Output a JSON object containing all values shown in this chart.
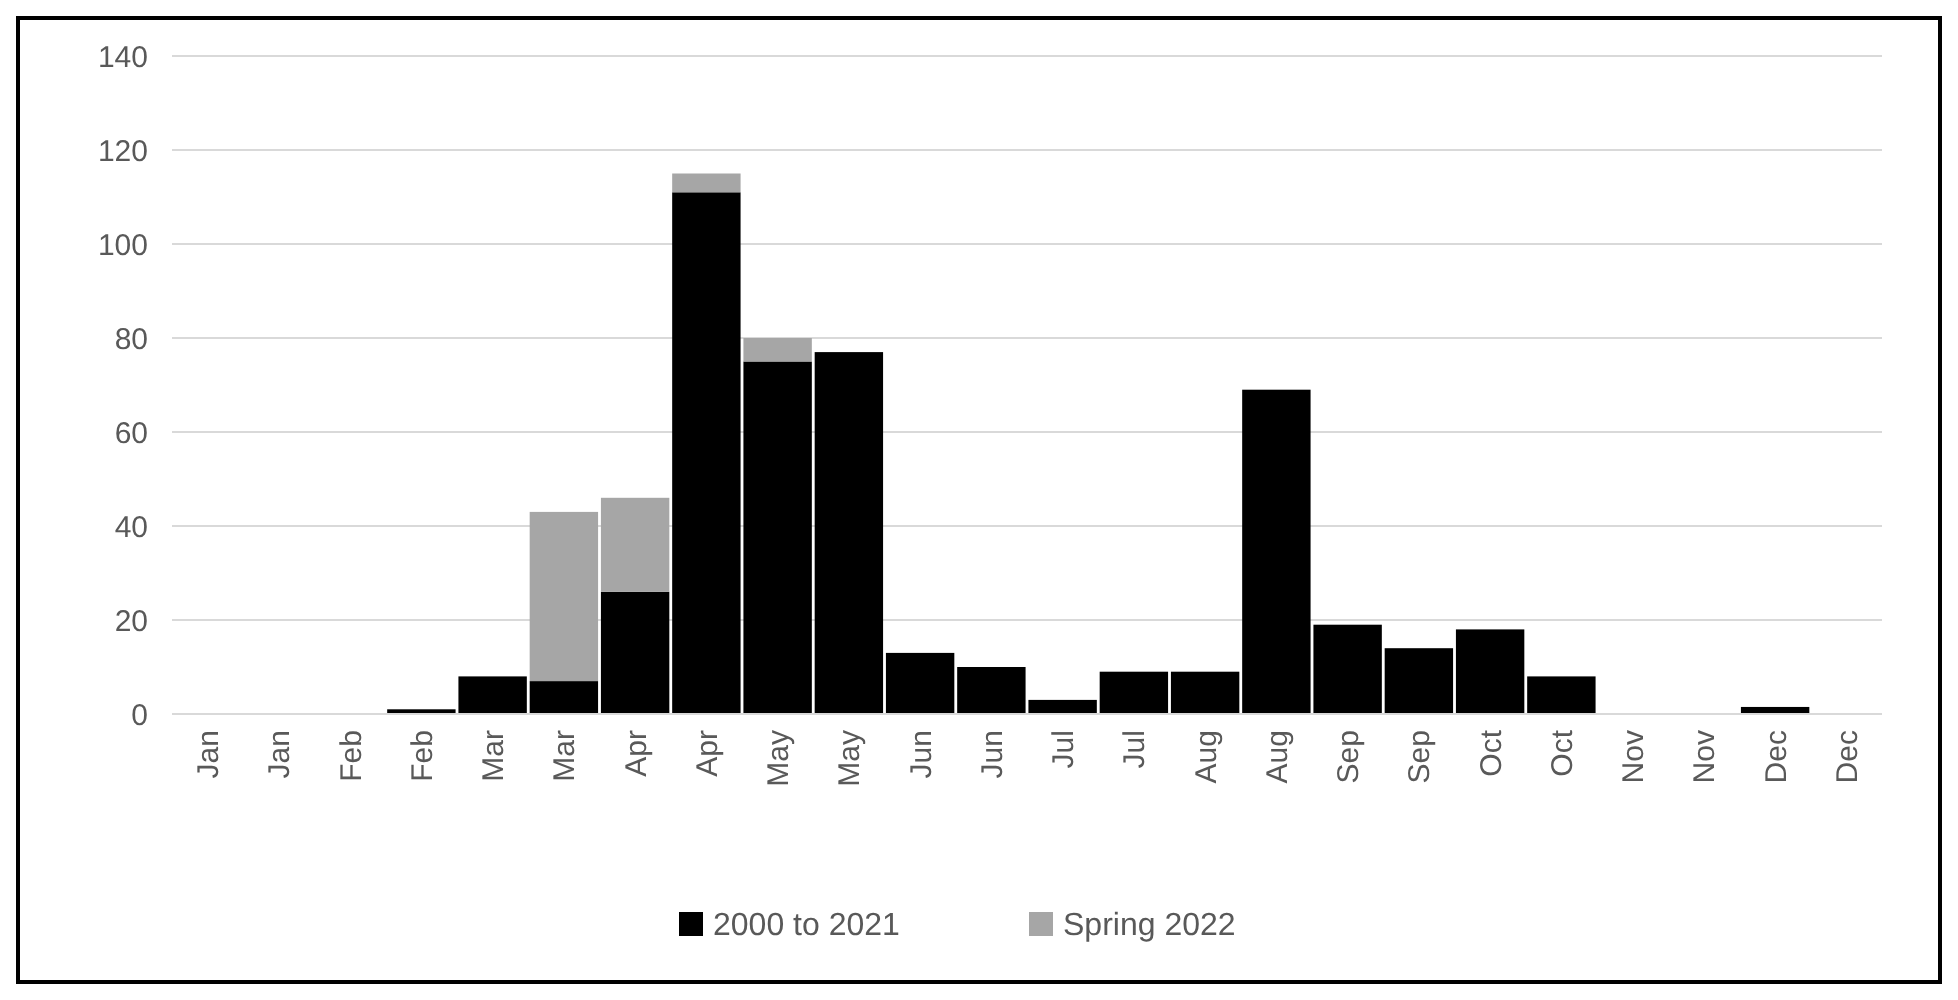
{
  "chart_data": {
    "type": "bar",
    "stacked": true,
    "categories": [
      "Jan",
      "Jan",
      "Feb",
      "Feb",
      "Mar",
      "Mar",
      "Apr",
      "Apr",
      "May",
      "May",
      "Jun",
      "Jun",
      "Jul",
      "Jul",
      "Aug",
      "Aug",
      "Sep",
      "Sep",
      "Oct",
      "Oct",
      "Nov",
      "Nov",
      "Dec",
      "Dec"
    ],
    "series": [
      {
        "name": "2000 to 2021",
        "color": "#000000",
        "values": [
          0,
          0,
          0,
          1,
          8,
          7,
          26,
          111,
          75,
          77,
          13,
          10,
          3,
          9,
          9,
          69,
          19,
          14,
          18,
          8,
          0,
          0,
          1.5,
          0
        ]
      },
      {
        "name": "Spring 2022",
        "color": "#a6a6a6",
        "values": [
          0,
          0,
          0,
          0,
          0,
          36,
          20,
          4,
          5,
          0,
          0,
          0,
          0,
          0,
          0,
          0,
          0,
          0,
          0,
          0,
          0,
          0,
          0,
          0
        ]
      }
    ],
    "ylim": [
      0,
      140
    ],
    "yticks": [
      0,
      20,
      40,
      60,
      80,
      100,
      120,
      140
    ],
    "grid": "y",
    "legend": "bottom"
  }
}
